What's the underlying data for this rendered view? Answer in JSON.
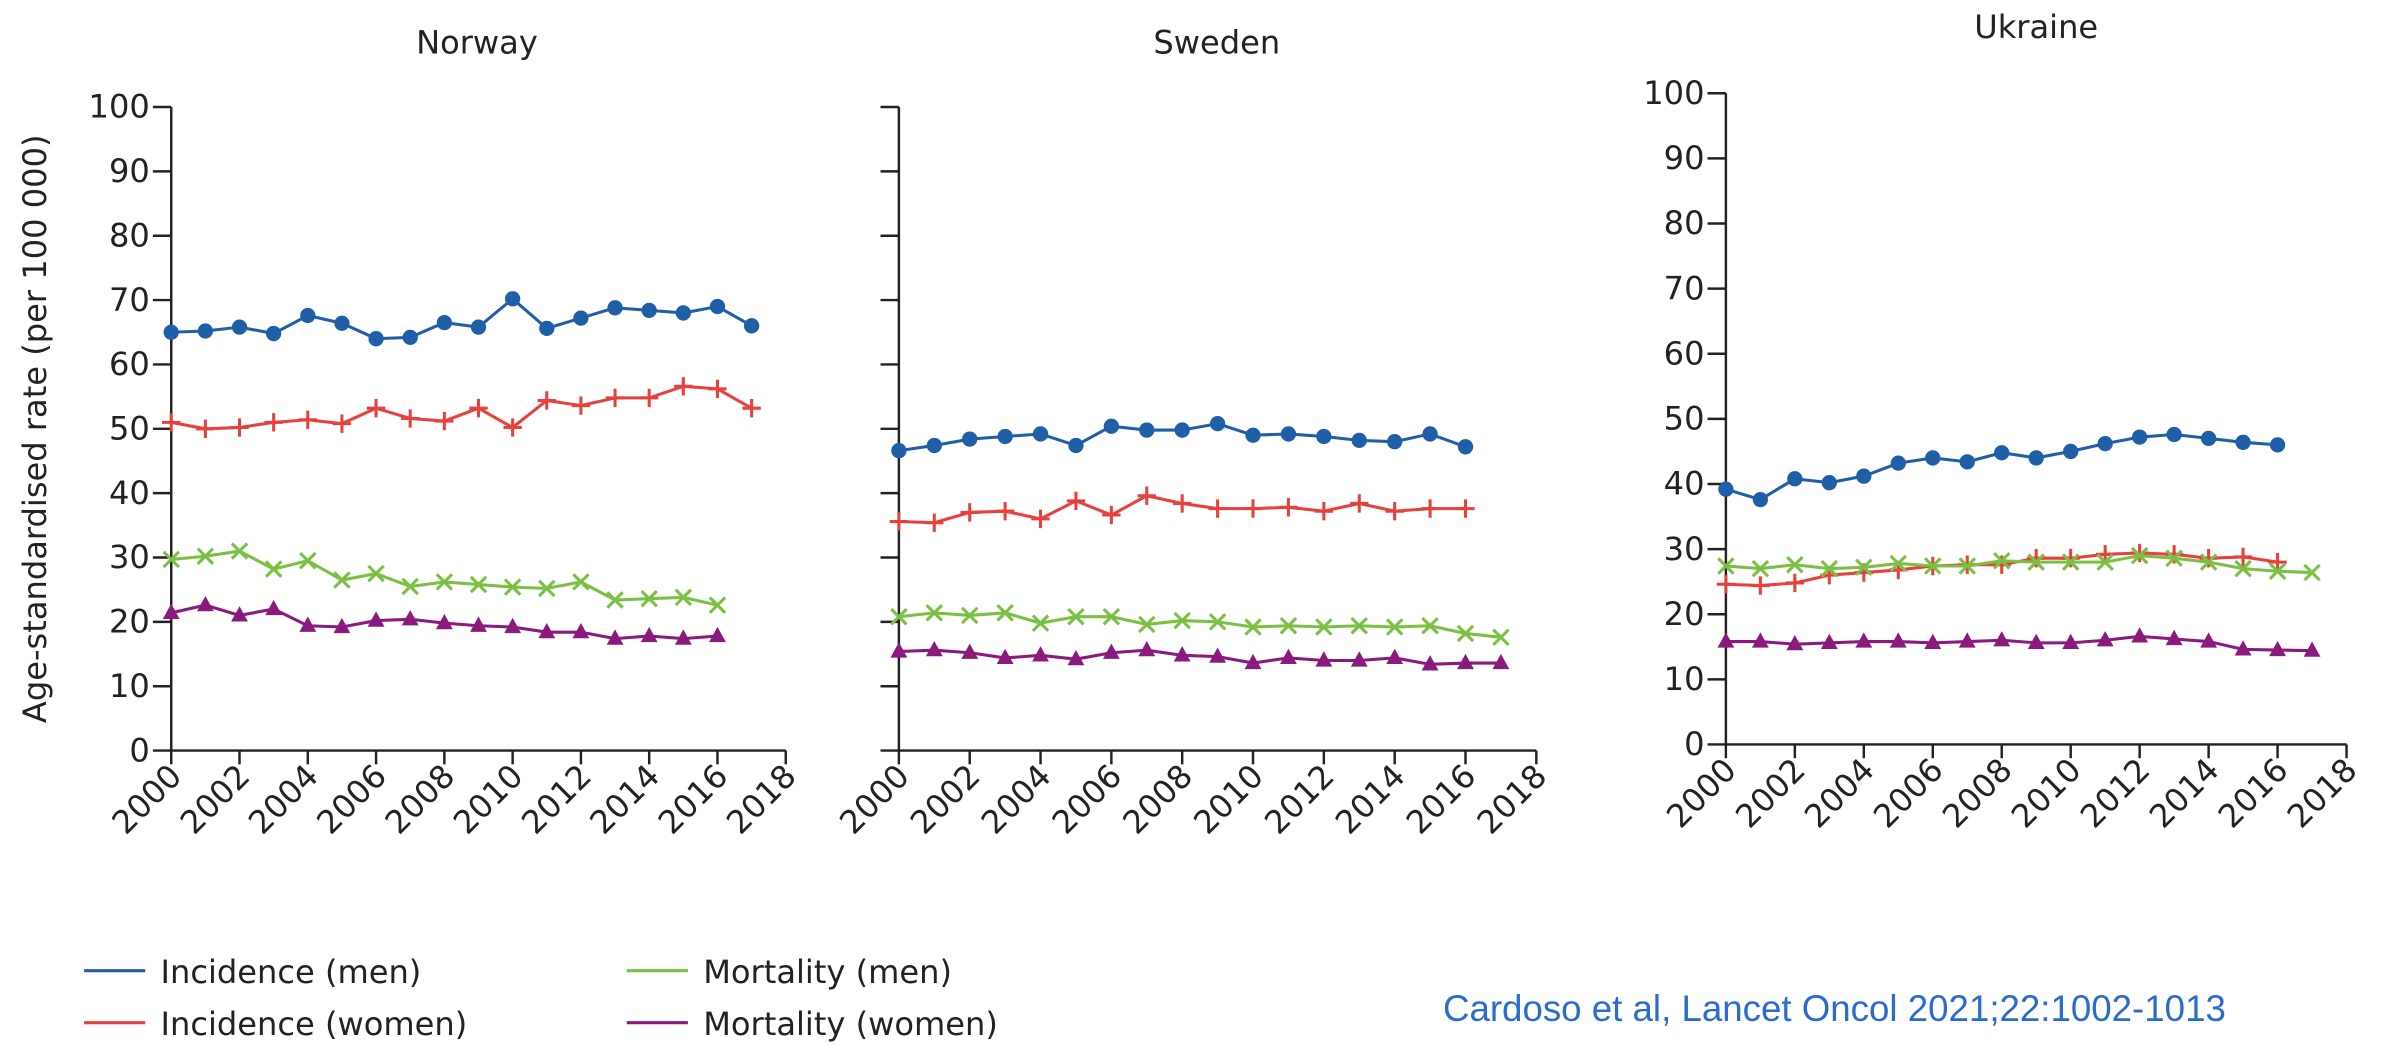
{
  "chart_data": [
    {
      "type": "line",
      "title": "Norway",
      "y_label": "Age-standardised rate (per 100 000)",
      "show_ytick_labels": true,
      "x": [
        2000,
        2001,
        2002,
        2003,
        2004,
        2005,
        2006,
        2007,
        2008,
        2009,
        2010,
        2011,
        2012,
        2013,
        2014,
        2015,
        2016,
        2017
      ],
      "xlim": [
        2000,
        2018
      ],
      "xticks": [
        2000,
        2002,
        2004,
        2006,
        2008,
        2010,
        2012,
        2014,
        2016,
        2018
      ],
      "ylim": [
        0,
        100
      ],
      "yticks": [
        0,
        10,
        20,
        30,
        40,
        50,
        60,
        70,
        80,
        90,
        100
      ],
      "series": [
        {
          "name": "Incidence (men)",
          "color": "#1f5fa8",
          "marker": "circle",
          "values": [
            65,
            65.2,
            65.8,
            64.8,
            67.6,
            66.4,
            64,
            64.2,
            66.5,
            65.8,
            70.2,
            65.6,
            67.2,
            68.8,
            68.4,
            68,
            69,
            66
          ]
        },
        {
          "name": "Incidence (women)",
          "color": "#e8413c",
          "marker": "plus",
          "values": [
            51,
            50,
            50.2,
            51,
            51.4,
            50.8,
            53.2,
            51.6,
            51.2,
            53.2,
            50.2,
            54.4,
            53.6,
            54.8,
            54.8,
            56.6,
            56.2,
            53.2
          ]
        },
        {
          "name": "Mortality (men)",
          "color": "#7ac143",
          "marker": "cross",
          "values": [
            29.7,
            30.2,
            31,
            28.2,
            29.5,
            26.5,
            27.5,
            25.5,
            26.2,
            25.8,
            25.4,
            25.2,
            26.2,
            23.4,
            23.6,
            23.8,
            22.6,
            null
          ]
        },
        {
          "name": "Mortality (women)",
          "color": "#8b1a7e",
          "marker": "triangle",
          "values": [
            21.4,
            22.6,
            21,
            22,
            19.4,
            19.2,
            20.2,
            20.4,
            19.8,
            19.4,
            19.2,
            18.4,
            18.4,
            17.4,
            17.8,
            17.4,
            17.8,
            null
          ]
        }
      ]
    },
    {
      "type": "line",
      "title": "Sweden",
      "show_ytick_labels": false,
      "x": [
        2000,
        2001,
        2002,
        2003,
        2004,
        2005,
        2006,
        2007,
        2008,
        2009,
        2010,
        2011,
        2012,
        2013,
        2014,
        2015,
        2016,
        2017
      ],
      "xlim": [
        2000,
        2018
      ],
      "xticks": [
        2000,
        2002,
        2004,
        2006,
        2008,
        2010,
        2012,
        2014,
        2016,
        2018
      ],
      "ylim": [
        0,
        100
      ],
      "yticks": [
        0,
        10,
        20,
        30,
        40,
        50,
        60,
        70,
        80,
        90,
        100
      ],
      "series": [
        {
          "color": "#1f5fa8",
          "marker": "circle",
          "values": [
            46.6,
            47.4,
            48.4,
            48.8,
            49.2,
            47.4,
            50.4,
            49.8,
            49.8,
            50.8,
            49,
            49.2,
            48.8,
            48.2,
            48,
            49.2,
            47.2,
            null
          ]
        },
        {
          "color": "#e8413c",
          "marker": "plus",
          "values": [
            35.6,
            35.4,
            37,
            37.2,
            36,
            38.8,
            36.6,
            39.6,
            38.4,
            37.6,
            37.6,
            37.8,
            37.2,
            38.4,
            37.2,
            37.6,
            37.6,
            null
          ]
        },
        {
          "color": "#7ac143",
          "marker": "cross",
          "values": [
            20.8,
            21.4,
            21,
            21.4,
            19.8,
            20.8,
            20.8,
            19.6,
            20.2,
            20,
            19.2,
            19.4,
            19.2,
            19.4,
            19.2,
            19.4,
            18.2,
            17.6
          ]
        },
        {
          "color": "#8b1a7e",
          "marker": "triangle",
          "values": [
            15.4,
            15.6,
            15.2,
            14.4,
            14.8,
            14.2,
            15.2,
            15.6,
            14.8,
            14.6,
            13.6,
            14.4,
            14,
            14,
            14.4,
            13.4,
            13.6,
            13.6
          ]
        }
      ]
    },
    {
      "type": "line",
      "title": "Ukraine",
      "show_ytick_labels": true,
      "x": [
        2000,
        2001,
        2002,
        2003,
        2004,
        2005,
        2006,
        2007,
        2008,
        2009,
        2010,
        2011,
        2012,
        2013,
        2014,
        2015,
        2016,
        2017
      ],
      "xlim": [
        2000,
        2018
      ],
      "xticks": [
        2000,
        2002,
        2004,
        2006,
        2008,
        2010,
        2012,
        2014,
        2016,
        2018
      ],
      "ylim": [
        0,
        100
      ],
      "yticks": [
        0,
        10,
        20,
        30,
        40,
        50,
        60,
        70,
        80,
        90,
        100
      ],
      "series": [
        {
          "color": "#1f5fa8",
          "marker": "circle",
          "values": [
            39.2,
            37.6,
            40.8,
            40.2,
            41.2,
            43.2,
            44,
            43.4,
            44.8,
            44,
            45,
            46.2,
            47.2,
            47.6,
            47,
            46.4,
            46,
            null
          ]
        },
        {
          "color": "#e8413c",
          "marker": "plus",
          "values": [
            24.6,
            24.4,
            24.8,
            26,
            26.4,
            26.8,
            27.4,
            27.6,
            27.6,
            28.6,
            28.6,
            29.2,
            29.4,
            29.2,
            28.6,
            28.8,
            28,
            null
          ]
        },
        {
          "color": "#7ac143",
          "marker": "cross",
          "values": [
            27.4,
            27,
            27.6,
            27,
            27.2,
            27.8,
            27.4,
            27.4,
            28.2,
            28,
            28,
            28,
            29,
            28.6,
            28,
            27,
            26.6,
            26.4
          ]
        },
        {
          "color": "#8b1a7e",
          "marker": "triangle",
          "values": [
            15.8,
            15.8,
            15.4,
            15.6,
            15.8,
            15.8,
            15.6,
            15.8,
            16,
            15.6,
            15.6,
            16,
            16.6,
            16.2,
            15.8,
            14.6,
            14.5,
            14.4
          ]
        }
      ]
    }
  ],
  "citation": "Cardoso et al, Lancet Oncol 2021;22:1002-1013"
}
